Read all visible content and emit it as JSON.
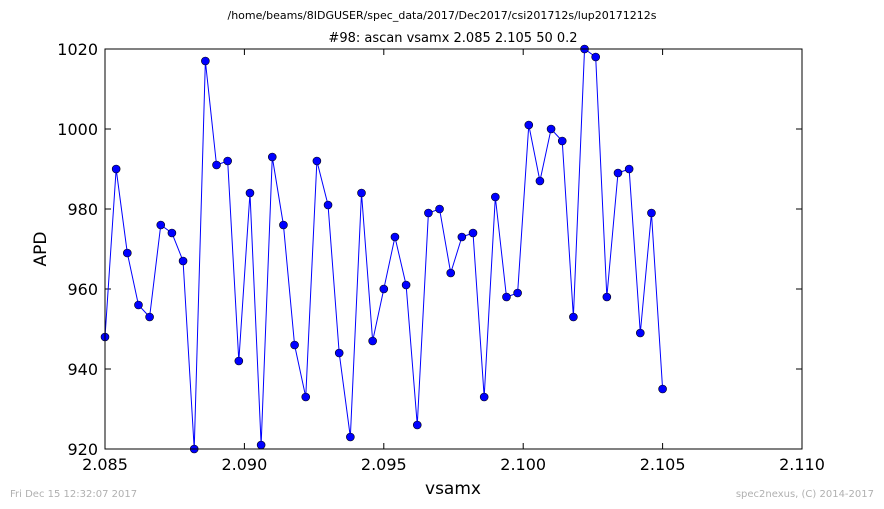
{
  "page": {
    "suptitle": "/home/beams/8IDGUSER/spec_data/2017/Dec2017/csi201712s/lup20171212s",
    "footer_left": "Fri Dec 15 12:32:07 2017",
    "footer_right": "spec2nexus, (C) 2014-2017"
  },
  "chart_data": {
    "type": "line",
    "title": "#98: ascan  vsamx 2.085 2.105  50 0.2",
    "xlabel": "vsamx",
    "ylabel": "APD",
    "xlim": [
      2.085,
      2.11
    ],
    "ylim": [
      920,
      1020
    ],
    "xticks": [
      2.085,
      2.09,
      2.095,
      2.1,
      2.105,
      2.11
    ],
    "xtick_labels": [
      "2.085",
      "2.090",
      "2.095",
      "2.100",
      "2.105",
      "2.110"
    ],
    "yticks": [
      920,
      940,
      960,
      980,
      1000,
      1020
    ],
    "ytick_labels": [
      "920",
      "940",
      "960",
      "980",
      "1000",
      "1020"
    ],
    "grid": false,
    "line_color": "#0000ff",
    "marker_color": "#0000ff",
    "series": [
      {
        "x": [
          2.085,
          2.0854,
          2.0858,
          2.0862,
          2.0866,
          2.087,
          2.0874,
          2.0878,
          2.0882,
          2.0886,
          2.089,
          2.0894,
          2.0898,
          2.0902,
          2.0906,
          2.091,
          2.0914,
          2.0918,
          2.0922,
          2.0926,
          2.093,
          2.0934,
          2.0938,
          2.0942,
          2.0946,
          2.095,
          2.0954,
          2.0958,
          2.0962,
          2.0966,
          2.097,
          2.0974,
          2.0978,
          2.0982,
          2.0986,
          2.099,
          2.0994,
          2.0998,
          2.1002,
          2.1006,
          2.101,
          2.1014,
          2.1018,
          2.1022,
          2.1026,
          2.103,
          2.1034,
          2.1038,
          2.1042,
          2.1046,
          2.105
        ],
        "y": [
          948,
          990,
          969,
          956,
          953,
          976,
          974,
          967,
          920,
          1017,
          991,
          992,
          942,
          984,
          921,
          993,
          976,
          946,
          933,
          992,
          981,
          944,
          923,
          984,
          947,
          960,
          973,
          961,
          926,
          979,
          980,
          964,
          973,
          974,
          933,
          983,
          958,
          959,
          1001,
          987,
          1000,
          997,
          953,
          1020,
          1018,
          958,
          989,
          990,
          949,
          979,
          935
        ]
      }
    ]
  }
}
